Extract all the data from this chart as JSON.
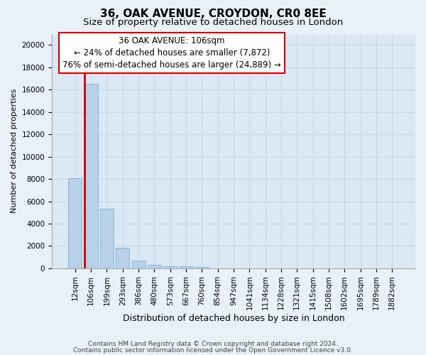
{
  "title1": "36, OAK AVENUE, CROYDON, CR0 8EE",
  "title2": "Size of property relative to detached houses in London",
  "xlabel": "Distribution of detached houses by size in London",
  "ylabel": "Number of detached properties",
  "footnote1": "Contains HM Land Registry data © Crown copyright and database right 2024.",
  "footnote2": "Contains public sector information licensed under the Open Government Licence v3.0.",
  "bar_labels": [
    "12sqm",
    "106sqm",
    "199sqm",
    "293sqm",
    "386sqm",
    "480sqm",
    "573sqm",
    "667sqm",
    "760sqm",
    "854sqm",
    "947sqm",
    "1041sqm",
    "1134sqm",
    "1228sqm",
    "1321sqm",
    "1415sqm",
    "1508sqm",
    "1602sqm",
    "1695sqm",
    "1789sqm",
    "1882sqm"
  ],
  "bar_values": [
    8050,
    16550,
    5350,
    1870,
    700,
    320,
    210,
    190,
    130,
    0,
    0,
    0,
    0,
    0,
    0,
    0,
    0,
    0,
    0,
    0,
    0
  ],
  "bar_color": "#b8d0e8",
  "bar_edge_color": "#6aaad4",
  "red_line_index": 1,
  "red_line_color": "#cc0000",
  "annotation_text": "36 OAK AVENUE: 106sqm\n← 24% of detached houses are smaller (7,872)\n76% of semi-detached houses are larger (24,889) →",
  "annotation_box_edgecolor": "#cc0000",
  "annotation_box_facecolor": "#ffffff",
  "ylim": [
    0,
    21000
  ],
  "yticks": [
    0,
    2000,
    4000,
    6000,
    8000,
    10000,
    12000,
    14000,
    16000,
    18000,
    20000
  ],
  "bg_color": "#e8f0f8",
  "axes_facecolor": "#dce8f4",
  "grid_color": "#c8d8e8",
  "title1_fontsize": 11,
  "title2_fontsize": 9.5,
  "xlabel_fontsize": 9,
  "ylabel_fontsize": 8,
  "tick_fontsize": 7.5,
  "annot_fontsize": 8.5
}
